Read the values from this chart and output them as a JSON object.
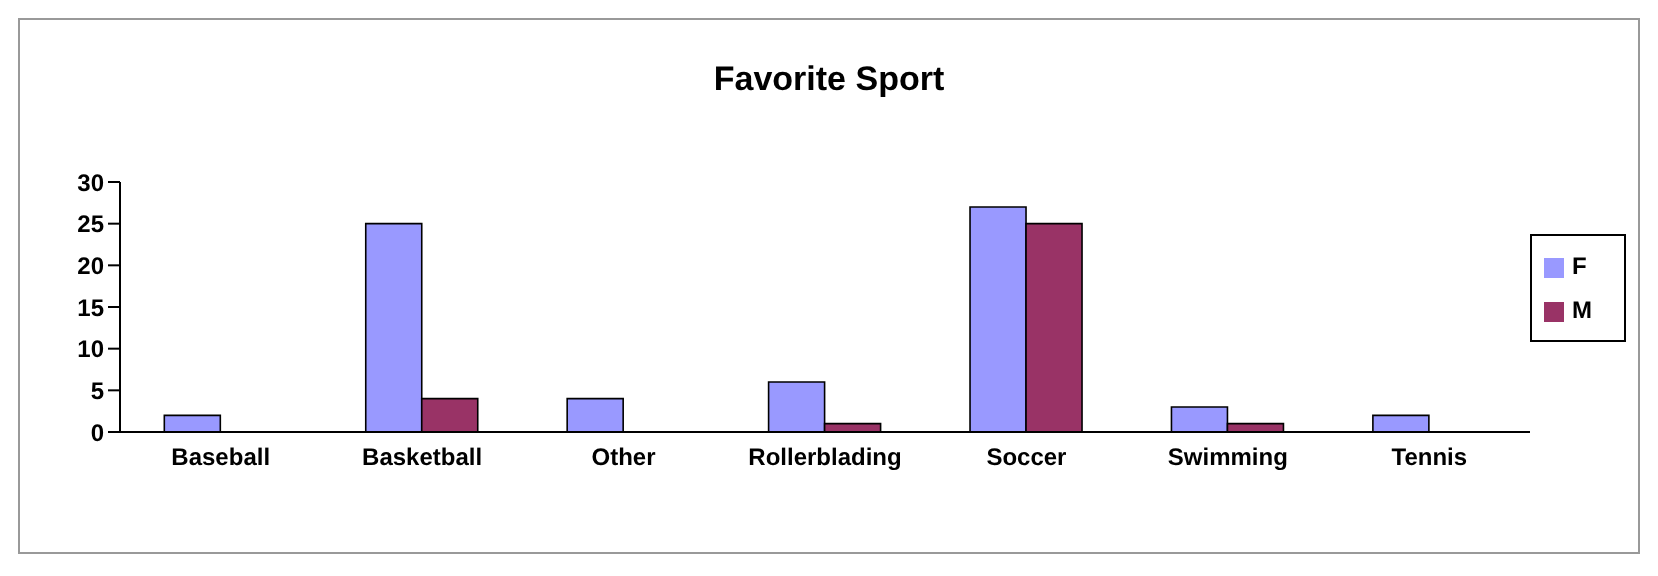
{
  "chart_data": {
    "type": "bar",
    "title": "Favorite Sport",
    "categories": [
      "Baseball",
      "Basketball",
      "Other",
      "Rollerblading",
      "Soccer",
      "Swimming",
      "Tennis"
    ],
    "series": [
      {
        "name": "F",
        "color": "#9999ff",
        "values": [
          2,
          25,
          4,
          6,
          27,
          3,
          2
        ]
      },
      {
        "name": "M",
        "color": "#993366",
        "values": [
          0,
          4,
          0,
          1,
          25,
          1,
          0
        ]
      }
    ],
    "ylim": [
      0,
      30
    ],
    "yticks": [
      0,
      5,
      10,
      15,
      20,
      25,
      30
    ],
    "grid": false,
    "legend": "right"
  }
}
